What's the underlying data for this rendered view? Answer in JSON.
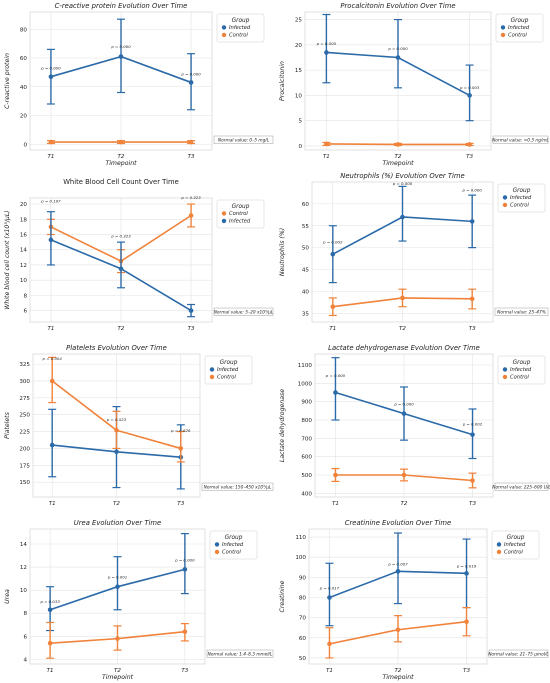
{
  "colors": {
    "infected": "#2b6aa8",
    "control": "#f0823a",
    "grid": "#e3e3e3",
    "axis": "#cccccc"
  },
  "chart_data": [
    {
      "type": "line",
      "title": "C-reactive protein Evolution Over Time",
      "title_style": "italic",
      "xlabel": "Timepoint",
      "ylabel": "C-reactive protein",
      "categories": [
        "T1",
        "T2",
        "T3"
      ],
      "ylim": [
        -4,
        92
      ],
      "yticks": [
        0,
        20,
        40,
        60,
        80
      ],
      "grid": true,
      "legend_position": "top-right",
      "legend_title": "Group",
      "series": [
        {
          "name": "Infected",
          "key": "infected",
          "values": [
            47,
            61,
            43
          ],
          "err_low": [
            28,
            36,
            24
          ],
          "err_high": [
            66,
            87,
            63
          ]
        },
        {
          "name": "Control",
          "key": "control",
          "values": [
            1.5,
            1.5,
            1.5
          ],
          "err_low": [
            0.5,
            0.5,
            0.5
          ],
          "err_high": [
            2.5,
            2.5,
            2.5
          ]
        }
      ],
      "pvalues": [
        {
          "label": "p = 0.000",
          "x": 0,
          "y": 52
        },
        {
          "label": "p = 0.000",
          "x": 1,
          "y": 67
        },
        {
          "label": "p = 0.000",
          "x": 2,
          "y": 48
        }
      ],
      "normal_note": "Normal value: 0–5 mg/L"
    },
    {
      "type": "line",
      "title": "Procalcitonin Evolution Over Time",
      "title_style": "italic",
      "xlabel": "Timepoint",
      "ylabel": "Procalcitonin",
      "categories": [
        "T1",
        "T2",
        "T3"
      ],
      "ylim": [
        -0.8,
        26.5
      ],
      "yticks": [
        0,
        5,
        10,
        15,
        20,
        25
      ],
      "grid": true,
      "legend_position": "top-right",
      "legend_title": "Group",
      "series": [
        {
          "name": "Infected",
          "key": "infected",
          "values": [
            18.5,
            17.5,
            10
          ],
          "err_low": [
            12.5,
            11.5,
            5
          ],
          "err_high": [
            26,
            25,
            16
          ]
        },
        {
          "name": "Control",
          "key": "control",
          "values": [
            0.4,
            0.3,
            0.3
          ],
          "err_low": [
            0.1,
            0.1,
            0.1
          ],
          "err_high": [
            0.7,
            0.5,
            0.5
          ]
        }
      ],
      "pvalues": [
        {
          "label": "p = 0.000",
          "x": 0,
          "y": 20
        },
        {
          "label": "p = 0.000",
          "x": 1,
          "y": 19
        },
        {
          "label": "p = 0.003",
          "x": 2,
          "y": 11.3
        }
      ],
      "normal_note": "Normal value: <0.5 ng/mL"
    },
    {
      "type": "line",
      "title": "White Blood Cell Count Over Time",
      "title_style": "normal",
      "xlabel": "",
      "ylabel": "White blood cell count (x10³/μL)",
      "categories": [
        "T1",
        "T2",
        "T3"
      ],
      "ylim": [
        4.5,
        20.8
      ],
      "yticks": [
        6,
        8,
        10,
        12,
        14,
        16,
        18,
        20
      ],
      "grid": true,
      "legend_position": "top-right",
      "legend_title": "Group",
      "series": [
        {
          "name": "Control",
          "key": "control",
          "values": [
            17,
            12.5,
            18.5
          ],
          "err_low": [
            16,
            11,
            17
          ],
          "err_high": [
            18,
            14,
            20
          ]
        },
        {
          "name": "Infected",
          "key": "infected",
          "values": [
            15.3,
            11.5,
            6
          ],
          "err_low": [
            12,
            9,
            5.2
          ],
          "err_high": [
            19,
            15,
            6.8
          ]
        }
      ],
      "pvalues": [
        {
          "label": "p = 0.197",
          "x": 0,
          "y": 20.2
        },
        {
          "label": "p = 0.323",
          "x": 1,
          "y": 15.6
        },
        {
          "label": "p = 0.323",
          "x": 2,
          "y": 20.7
        }
      ],
      "normal_note": "Normal value: 5–20 x10³/μL"
    },
    {
      "type": "line",
      "title": "Neutrophils (%) Evolution Over Time",
      "title_style": "italic",
      "xlabel": "",
      "ylabel": "Neutrophils (%)",
      "categories": [
        "T1",
        "T2",
        "T3"
      ],
      "ylim": [
        33,
        65
      ],
      "yticks": [
        35,
        40,
        45,
        50,
        55,
        60
      ],
      "grid": true,
      "legend_position": "top-right",
      "legend_title": "Group",
      "series": [
        {
          "name": "Infected",
          "key": "infected",
          "values": [
            48.5,
            57,
            56
          ],
          "err_low": [
            42,
            51.5,
            50
          ],
          "err_high": [
            55,
            64,
            62
          ]
        },
        {
          "name": "Control",
          "key": "control",
          "values": [
            36.5,
            38.5,
            38.3
          ],
          "err_low": [
            34.5,
            36.5,
            36
          ],
          "err_high": [
            38.5,
            40.5,
            40.5
          ]
        }
      ],
      "pvalues": [
        {
          "label": "p = 0.002",
          "x": 0,
          "y": 51
        },
        {
          "label": "p = 0.000",
          "x": 1,
          "y": 64.3
        },
        {
          "label": "p = 0.000",
          "x": 2,
          "y": 62.8
        }
      ],
      "normal_note": "Normal value: 25–47%"
    },
    {
      "type": "line",
      "title": "Platelets Evolution Over Time",
      "title_style": "italic",
      "xlabel": "",
      "ylabel": "Platelets",
      "categories": [
        "T1",
        "T2",
        "T3"
      ],
      "ylim": [
        128,
        340
      ],
      "yticks": [
        150,
        175,
        200,
        225,
        250,
        275,
        300,
        325
      ],
      "grid": true,
      "legend_position": "top-right",
      "legend_title": "Group",
      "series": [
        {
          "name": "Infected",
          "key": "infected",
          "values": [
            205,
            195,
            187
          ],
          "err_low": [
            158,
            142,
            140
          ],
          "err_high": [
            258,
            262,
            235
          ]
        },
        {
          "name": "Control",
          "key": "control",
          "values": [
            300,
            227,
            200
          ],
          "err_low": [
            268,
            200,
            180
          ],
          "err_high": [
            335,
            255,
            225
          ]
        }
      ],
      "pvalues": [
        {
          "label": "p = 0.004",
          "x": 0,
          "y": 331
        },
        {
          "label": "p = 0.523",
          "x": 1,
          "y": 241
        },
        {
          "label": "p = 0.626",
          "x": 2,
          "y": 224
        }
      ],
      "normal_note": "Normal value: 150–450 x10³/μL"
    },
    {
      "type": "line",
      "title": "Lactate dehydrogenase Evolution Over Time",
      "title_style": "italic",
      "xlabel": "",
      "ylabel": "Lactate dehydrogenase",
      "categories": [
        "T1",
        "T2",
        "T3"
      ],
      "ylim": [
        380,
        1160
      ],
      "yticks": [
        400,
        500,
        600,
        700,
        800,
        900,
        1000,
        1100
      ],
      "grid": true,
      "legend_position": "top-right",
      "legend_title": "Group",
      "series": [
        {
          "name": "Infected",
          "key": "infected",
          "values": [
            950,
            835,
            720
          ],
          "err_low": [
            800,
            690,
            590
          ],
          "err_high": [
            1140,
            980,
            860
          ]
        },
        {
          "name": "Control",
          "key": "control",
          "values": [
            500,
            500,
            470
          ],
          "err_low": [
            465,
            468,
            430
          ],
          "err_high": [
            535,
            532,
            510
          ]
        }
      ],
      "pvalues": [
        {
          "label": "p = 0.000",
          "x": 0,
          "y": 1035
        },
        {
          "label": "p = 0.000",
          "x": 1,
          "y": 880
        },
        {
          "label": "p = 0.002",
          "x": 2,
          "y": 770
        }
      ],
      "normal_note": "Normal value: 225–600 U/L"
    },
    {
      "type": "line",
      "title": "Urea Evolution Over Time",
      "title_style": "italic",
      "xlabel": "Timepoint",
      "ylabel": "Urea",
      "categories": [
        "T1",
        "T2",
        "T3"
      ],
      "ylim": [
        3.6,
        15.3
      ],
      "yticks": [
        4,
        6,
        8,
        10,
        12,
        14
      ],
      "grid": true,
      "legend_position": "top-right",
      "legend_title": "Group",
      "series": [
        {
          "name": "Infected",
          "key": "infected",
          "values": [
            8.3,
            10.3,
            11.8
          ],
          "err_low": [
            6.5,
            8.3,
            9.7
          ],
          "err_high": [
            10.3,
            12.9,
            14.9
          ]
        },
        {
          "name": "Control",
          "key": "control",
          "values": [
            5.4,
            5.8,
            6.4
          ],
          "err_low": [
            4.1,
            4.8,
            5.6
          ],
          "err_high": [
            7.2,
            6.9,
            7.1
          ]
        }
      ],
      "pvalues": [
        {
          "label": "p = 0.033",
          "x": 0,
          "y": 8.9
        },
        {
          "label": "p = 0.001",
          "x": 1,
          "y": 11.0
        },
        {
          "label": "p = 0.000",
          "x": 2,
          "y": 12.5
        }
      ],
      "normal_note": "Normal value: 1.4–8.3 mmol/L"
    },
    {
      "type": "line",
      "title": "Creatinine Evolution Over Time",
      "title_style": "italic",
      "xlabel": "Timepoint",
      "ylabel": "Creatinine",
      "categories": [
        "T1",
        "T2",
        "T3"
      ],
      "ylim": [
        47,
        114
      ],
      "yticks": [
        50,
        60,
        70,
        80,
        90,
        100,
        110
      ],
      "grid": true,
      "legend_position": "top-right",
      "legend_title": "Group",
      "series": [
        {
          "name": "Infected",
          "key": "infected",
          "values": [
            80,
            93,
            92
          ],
          "err_low": [
            66,
            77,
            75
          ],
          "err_high": [
            97,
            112,
            109
          ]
        },
        {
          "name": "Control",
          "key": "control",
          "values": [
            57,
            64,
            68
          ],
          "err_low": [
            50,
            58,
            61
          ],
          "err_high": [
            65,
            71,
            75
          ]
        }
      ],
      "pvalues": [
        {
          "label": "p = 0.017",
          "x": 0,
          "y": 84
        },
        {
          "label": "p = 0.007",
          "x": 1,
          "y": 96
        },
        {
          "label": "p = 0.019",
          "x": 2,
          "y": 95
        }
      ],
      "normal_note": "Normal value: 21–75 μmol/L"
    }
  ]
}
